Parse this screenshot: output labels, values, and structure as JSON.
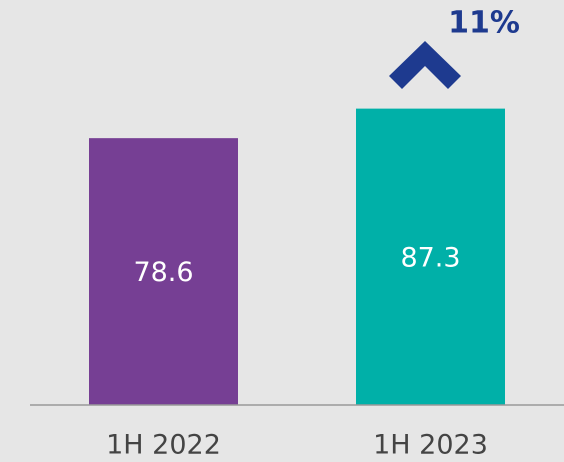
{
  "chart_data": {
    "type": "bar",
    "categories": [
      "1H 2022",
      "1H 2023"
    ],
    "values": [
      78.6,
      87.3
    ],
    "colors": [
      "#763f94",
      "#00b0a8"
    ],
    "annotation": "11%",
    "ylim": [
      0,
      119
    ]
  }
}
